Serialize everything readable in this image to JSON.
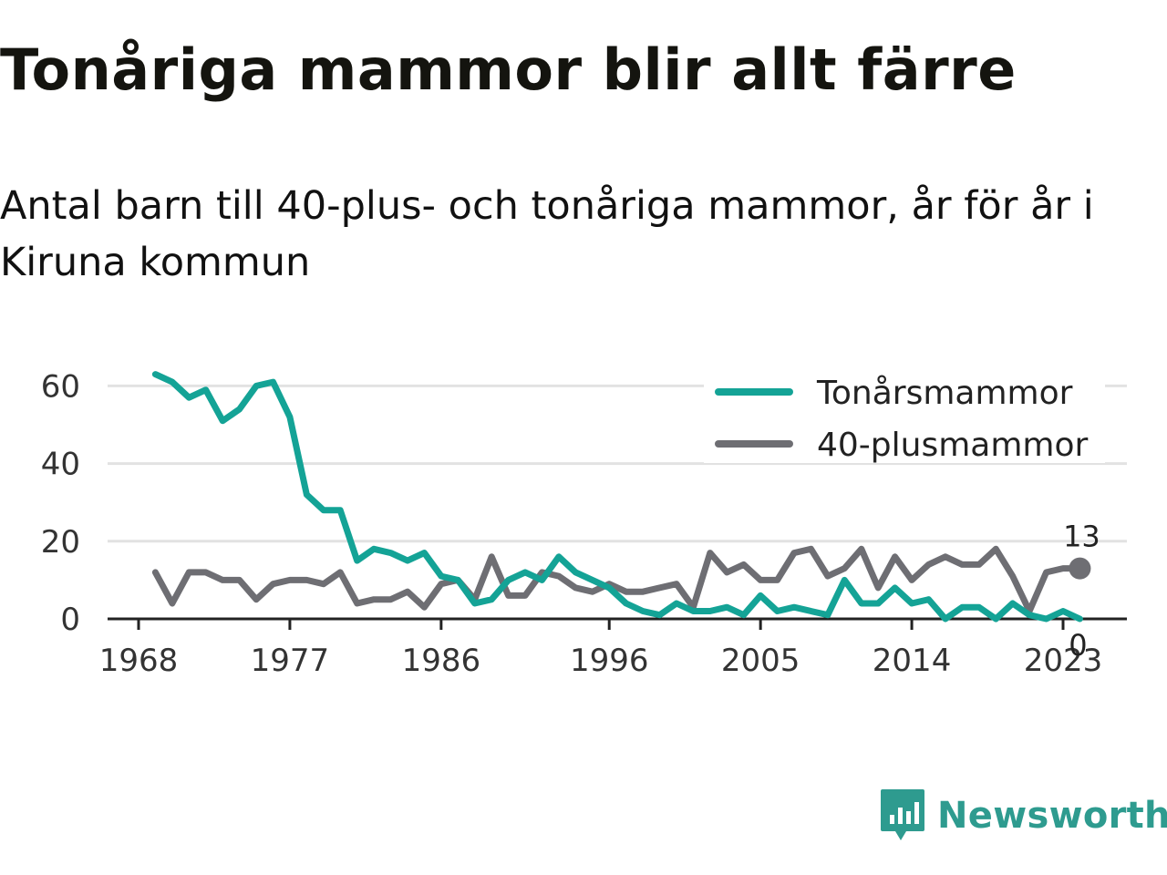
{
  "title": "Tonåriga mammor blir allt färre",
  "subtitle": "Antal barn till 40-plus- och tonåriga mammor, år för år i Kiruna kommun",
  "brand": "Newsworthy",
  "colors": {
    "teen": "#14a396",
    "forty": "#6e6e73",
    "grid": "#e2e2e2",
    "axis": "#222222",
    "brand": "#2e9b8f"
  },
  "chart_data": {
    "type": "line",
    "x": [
      1969,
      1970,
      1971,
      1972,
      1973,
      1974,
      1975,
      1976,
      1977,
      1978,
      1979,
      1980,
      1981,
      1982,
      1983,
      1984,
      1985,
      1986,
      1987,
      1988,
      1989,
      1990,
      1991,
      1992,
      1993,
      1994,
      1995,
      1996,
      1997,
      1998,
      1999,
      2000,
      2001,
      2002,
      2003,
      2004,
      2005,
      2006,
      2007,
      2008,
      2009,
      2010,
      2011,
      2012,
      2013,
      2014,
      2015,
      2016,
      2017,
      2018,
      2019,
      2020,
      2021,
      2022,
      2023,
      2024
    ],
    "series": [
      {
        "name": "Tonårsmammor",
        "color": "#14a396",
        "values": [
          63,
          61,
          57,
          59,
          51,
          54,
          60,
          61,
          52,
          32,
          28,
          28,
          15,
          18,
          17,
          15,
          17,
          11,
          10,
          4,
          5,
          10,
          12,
          10,
          16,
          12,
          10,
          8,
          4,
          2,
          1,
          4,
          2,
          2,
          3,
          1,
          6,
          2,
          3,
          2,
          1,
          10,
          4,
          4,
          8,
          4,
          5,
          0,
          3,
          3,
          0,
          4,
          1,
          0,
          2,
          0
        ]
      },
      {
        "name": "40-plusmammor",
        "color": "#6e6e73",
        "values": [
          12,
          4,
          12,
          12,
          10,
          10,
          5,
          9,
          10,
          10,
          9,
          12,
          4,
          5,
          5,
          7,
          3,
          9,
          10,
          5,
          16,
          6,
          6,
          12,
          11,
          8,
          7,
          9,
          7,
          7,
          8,
          9,
          3,
          17,
          12,
          14,
          10,
          10,
          17,
          18,
          11,
          13,
          18,
          8,
          16,
          10,
          14,
          16,
          14,
          14,
          18,
          11,
          2,
          12,
          13,
          13
        ]
      }
    ],
    "xticks": [
      1968,
      1977,
      1986,
      1996,
      2005,
      2014,
      2023
    ],
    "yticks": [
      0,
      20,
      40,
      60
    ],
    "xlim": [
      1968,
      2025
    ],
    "ylim": [
      0,
      65
    ],
    "legend": "top-right",
    "end_labels": [
      "0",
      "13"
    ],
    "grid": "horizontal"
  }
}
